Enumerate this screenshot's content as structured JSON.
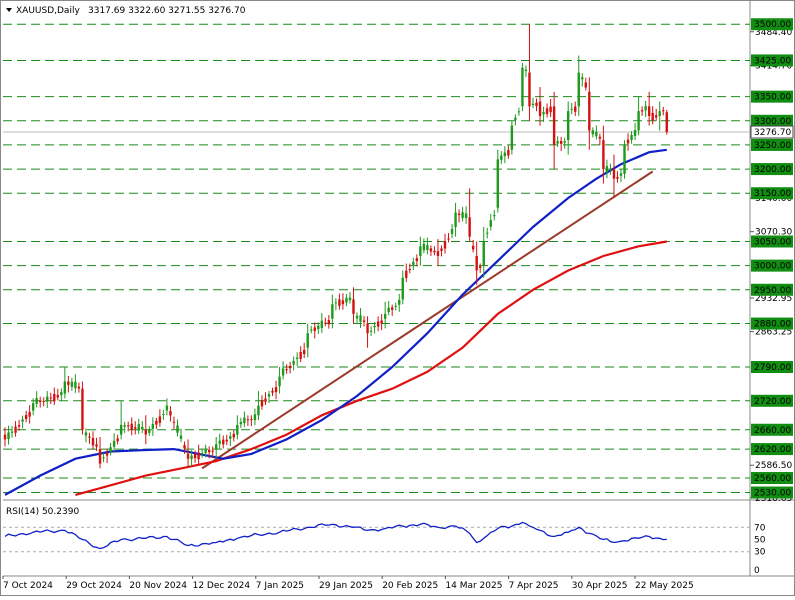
{
  "header": {
    "symbol": "XAUUSD,Daily",
    "ohlc": "3317.69 3322.60 3271.55 3276.70"
  },
  "colors": {
    "bull": "#1c9a1c",
    "bear": "#d41010",
    "level_line": "#1a8a1a",
    "level_label_bg": "#118d11",
    "ma_blue": "#1020c8",
    "ma_red": "#e01010",
    "trendline": "#9b3a2a",
    "rsi": "#1020c8"
  },
  "chart_data": [
    {
      "type": "candlestick",
      "title": "XAUUSD,Daily",
      "ylim": [
        2518.65,
        3515
      ],
      "x_ticks": [
        "7 Oct 2024",
        "29 Oct 2024",
        "20 Nov 2024",
        "12 Dec 2024",
        "7 Jan 2025",
        "29 Jan 2025",
        "20 Feb 2025",
        "14 Mar 2025",
        "7 Apr 2025",
        "30 Apr 2025",
        "22 May 2025"
      ],
      "price_labels": [
        "3484.40",
        "3414.70",
        "3140.00",
        "3070.30",
        "2932.95",
        "2863.25",
        "2586.50",
        "2518.65"
      ],
      "current_price": "3276.70",
      "horizontal_levels": [
        "3500.00",
        "3425.00",
        "3350.00",
        "3300.00",
        "3250.00",
        "3200.00",
        "3150.00",
        "3050.00",
        "3000.00",
        "2950.00",
        "2880.00",
        "2790.00",
        "2720.00",
        "2660.00",
        "2620.00",
        "2560.00",
        "2530.00"
      ],
      "anchors": [
        {
          "d": 0,
          "o": 2650,
          "h": 2665,
          "l": 2625,
          "c": 2640
        },
        {
          "d": 8,
          "o": 2700,
          "h": 2725,
          "l": 2690,
          "c": 2715
        },
        {
          "d": 17,
          "o": 2735,
          "h": 2790,
          "l": 2725,
          "c": 2760
        },
        {
          "d": 22,
          "o": 2745,
          "h": 2760,
          "l": 2650,
          "c": 2660
        },
        {
          "d": 27,
          "o": 2620,
          "h": 2645,
          "l": 2580,
          "c": 2590
        },
        {
          "d": 33,
          "o": 2650,
          "h": 2720,
          "l": 2640,
          "c": 2670
        },
        {
          "d": 40,
          "o": 2660,
          "h": 2690,
          "l": 2630,
          "c": 2650
        },
        {
          "d": 46,
          "o": 2700,
          "h": 2725,
          "l": 2690,
          "c": 2710
        },
        {
          "d": 52,
          "o": 2610,
          "h": 2640,
          "l": 2585,
          "c": 2600
        },
        {
          "d": 60,
          "o": 2620,
          "h": 2645,
          "l": 2600,
          "c": 2630
        },
        {
          "d": 66,
          "o": 2650,
          "h": 2690,
          "l": 2640,
          "c": 2670
        },
        {
          "d": 72,
          "o": 2690,
          "h": 2740,
          "l": 2680,
          "c": 2710
        },
        {
          "d": 78,
          "o": 2750,
          "h": 2790,
          "l": 2735,
          "c": 2770
        },
        {
          "d": 86,
          "o": 2830,
          "h": 2880,
          "l": 2810,
          "c": 2860
        },
        {
          "d": 93,
          "o": 2890,
          "h": 2940,
          "l": 2870,
          "c": 2920
        },
        {
          "d": 99,
          "o": 2930,
          "h": 2955,
          "l": 2880,
          "c": 2900
        },
        {
          "d": 103,
          "o": 2880,
          "h": 2895,
          "l": 2830,
          "c": 2860
        },
        {
          "d": 108,
          "o": 2890,
          "h": 2925,
          "l": 2870,
          "c": 2900
        },
        {
          "d": 113,
          "o": 2930,
          "h": 2990,
          "l": 2920,
          "c": 2975
        },
        {
          "d": 118,
          "o": 3020,
          "h": 3060,
          "l": 3000,
          "c": 3040
        },
        {
          "d": 123,
          "o": 3030,
          "h": 3055,
          "l": 3000,
          "c": 3020
        },
        {
          "d": 128,
          "o": 3080,
          "h": 3130,
          "l": 3060,
          "c": 3110
        },
        {
          "d": 132,
          "o": 3100,
          "h": 3160,
          "l": 3050,
          "c": 3060
        },
        {
          "d": 134,
          "o": 3020,
          "h": 3050,
          "l": 2960,
          "c": 2990
        },
        {
          "d": 136,
          "o": 3000,
          "h": 3080,
          "l": 2975,
          "c": 3050
        },
        {
          "d": 140,
          "o": 3120,
          "h": 3240,
          "l": 3110,
          "c": 3220
        },
        {
          "d": 144,
          "o": 3240,
          "h": 3300,
          "l": 3230,
          "c": 3290
        },
        {
          "d": 147,
          "o": 3330,
          "h": 3420,
          "l": 3320,
          "c": 3410
        },
        {
          "d": 149,
          "o": 3400,
          "h": 3500,
          "l": 3300,
          "c": 3330
        },
        {
          "d": 152,
          "o": 3340,
          "h": 3370,
          "l": 3290,
          "c": 3310
        },
        {
          "d": 156,
          "o": 3330,
          "h": 3360,
          "l": 3200,
          "c": 3250
        },
        {
          "d": 160,
          "o": 3260,
          "h": 3340,
          "l": 3230,
          "c": 3320
        },
        {
          "d": 163,
          "o": 3330,
          "h": 3435,
          "l": 3310,
          "c": 3400
        },
        {
          "d": 166,
          "o": 3360,
          "h": 3390,
          "l": 3240,
          "c": 3280
        },
        {
          "d": 170,
          "o": 3260,
          "h": 3290,
          "l": 3170,
          "c": 3200
        },
        {
          "d": 173,
          "o": 3200,
          "h": 3230,
          "l": 3140,
          "c": 3180
        },
        {
          "d": 176,
          "o": 3190,
          "h": 3260,
          "l": 3180,
          "c": 3250
        },
        {
          "d": 180,
          "o": 3280,
          "h": 3350,
          "l": 3270,
          "c": 3320
        },
        {
          "d": 183,
          "o": 3330,
          "h": 3360,
          "l": 3290,
          "c": 3310
        },
        {
          "d": 186,
          "o": 3310,
          "h": 3340,
          "l": 3280,
          "c": 3320
        },
        {
          "d": 188,
          "o": 3317.69,
          "h": 3322.6,
          "l": 3271.55,
          "c": 3276.7
        }
      ],
      "ma_fast": [
        [
          0,
          2525
        ],
        [
          10,
          2565
        ],
        [
          20,
          2600
        ],
        [
          30,
          2615
        ],
        [
          40,
          2618
        ],
        [
          48,
          2620
        ],
        [
          55,
          2610
        ],
        [
          62,
          2600
        ],
        [
          70,
          2610
        ],
        [
          80,
          2640
        ],
        [
          90,
          2680
        ],
        [
          100,
          2730
        ],
        [
          110,
          2790
        ],
        [
          120,
          2860
        ],
        [
          130,
          2940
        ],
        [
          140,
          3010
        ],
        [
          150,
          3080
        ],
        [
          160,
          3140
        ],
        [
          168,
          3180
        ],
        [
          175,
          3210
        ],
        [
          183,
          3235
        ],
        [
          188,
          3240
        ]
      ],
      "ma_slow": [
        [
          20,
          2525
        ],
        [
          30,
          2545
        ],
        [
          40,
          2565
        ],
        [
          50,
          2580
        ],
        [
          60,
          2595
        ],
        [
          70,
          2620
        ],
        [
          80,
          2650
        ],
        [
          90,
          2690
        ],
        [
          100,
          2720
        ],
        [
          110,
          2745
        ],
        [
          120,
          2780
        ],
        [
          130,
          2830
        ],
        [
          140,
          2900
        ],
        [
          150,
          2950
        ],
        [
          160,
          2990
        ],
        [
          170,
          3020
        ],
        [
          180,
          3040
        ],
        [
          188,
          3050
        ]
      ],
      "trendline": [
        [
          56,
          2580
        ],
        [
          184,
          3195
        ]
      ]
    },
    {
      "type": "line",
      "title": "RSI(14) 50.2390",
      "ylim": [
        0,
        100
      ],
      "y_ticks": [
        "70",
        "50",
        "30",
        "0"
      ],
      "series": [
        {
          "name": "RSI(14)",
          "points": [
            [
              0,
              55
            ],
            [
              8,
              62
            ],
            [
              17,
              65
            ],
            [
              22,
              50
            ],
            [
              27,
              35
            ],
            [
              33,
              50
            ],
            [
              40,
              52
            ],
            [
              46,
              55
            ],
            [
              52,
              40
            ],
            [
              60,
              45
            ],
            [
              66,
              52
            ],
            [
              72,
              58
            ],
            [
              78,
              62
            ],
            [
              86,
              70
            ],
            [
              93,
              75
            ],
            [
              99,
              70
            ],
            [
              103,
              65
            ],
            [
              108,
              68
            ],
            [
              113,
              72
            ],
            [
              118,
              75
            ],
            [
              123,
              70
            ],
            [
              128,
              72
            ],
            [
              132,
              60
            ],
            [
              134,
              45
            ],
            [
              136,
              52
            ],
            [
              140,
              68
            ],
            [
              144,
              72
            ],
            [
              147,
              78
            ],
            [
              149,
              72
            ],
            [
              152,
              65
            ],
            [
              156,
              55
            ],
            [
              160,
              62
            ],
            [
              163,
              70
            ],
            [
              166,
              60
            ],
            [
              170,
              50
            ],
            [
              173,
              45
            ],
            [
              176,
              48
            ],
            [
              180,
              52
            ],
            [
              183,
              55
            ],
            [
              186,
              52
            ],
            [
              188,
              50.24
            ]
          ]
        }
      ]
    }
  ]
}
